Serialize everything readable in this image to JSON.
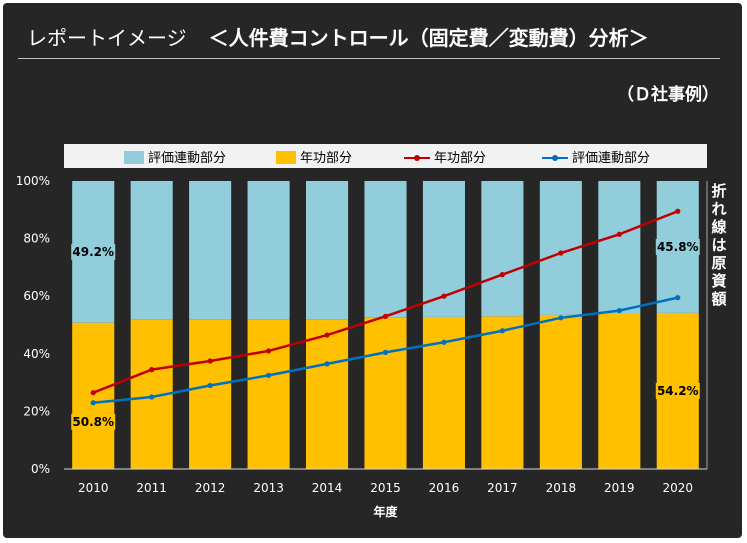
{
  "header": {
    "title_prefix": "レポートイメージ",
    "title_main": "＜人件費コントロール（固定費／変動費）分析＞",
    "subtitle": "（Ｄ社事例）"
  },
  "right_note": "折れ線は原資額",
  "colors": {
    "background": "#262626",
    "eval_bar": "#92cddc",
    "seniority_bar": "#ffc000",
    "seniority_line": "#c00000",
    "eval_line": "#0070c0"
  },
  "chart_data": {
    "type": "bar",
    "stacked": true,
    "percent": true,
    "categories": [
      "2010",
      "2011",
      "2012",
      "2013",
      "2014",
      "2015",
      "2016",
      "2017",
      "2018",
      "2019",
      "2020"
    ],
    "xlabel": "年度",
    "ylabel": "",
    "ylim": [
      0,
      100
    ],
    "yticks": [
      "0%",
      "20%",
      "40%",
      "60%",
      "80%",
      "100%"
    ],
    "legend_position": "top",
    "series": [
      {
        "name": "評価連動部分",
        "kind": "bar",
        "values": [
          49.2,
          48,
          48,
          48,
          48,
          47.5,
          47.2,
          47,
          46.5,
          46,
          45.8
        ]
      },
      {
        "name": "年功部分",
        "kind": "bar",
        "values": [
          50.8,
          52,
          52,
          52,
          52,
          52.5,
          52.8,
          53,
          53.5,
          54,
          54.2
        ]
      },
      {
        "name": "年功部分",
        "kind": "line",
        "values": [
          26.5,
          34.5,
          37.5,
          41,
          46.5,
          53,
          60,
          67.5,
          75,
          81.5,
          89.5
        ]
      },
      {
        "name": "評価連動部分",
        "kind": "line",
        "values": [
          23,
          25,
          29,
          32.5,
          36.5,
          40.5,
          44,
          48,
          52.5,
          55,
          59.5
        ]
      }
    ],
    "annotations": [
      {
        "label": "49.2%",
        "category": "2010",
        "position": "upper-segment"
      },
      {
        "label": "50.8%",
        "category": "2010",
        "position": "lower-segment"
      },
      {
        "label": "45.8%",
        "category": "2020",
        "position": "upper-segment"
      },
      {
        "label": "54.2%",
        "category": "2020",
        "position": "lower-segment"
      }
    ]
  }
}
